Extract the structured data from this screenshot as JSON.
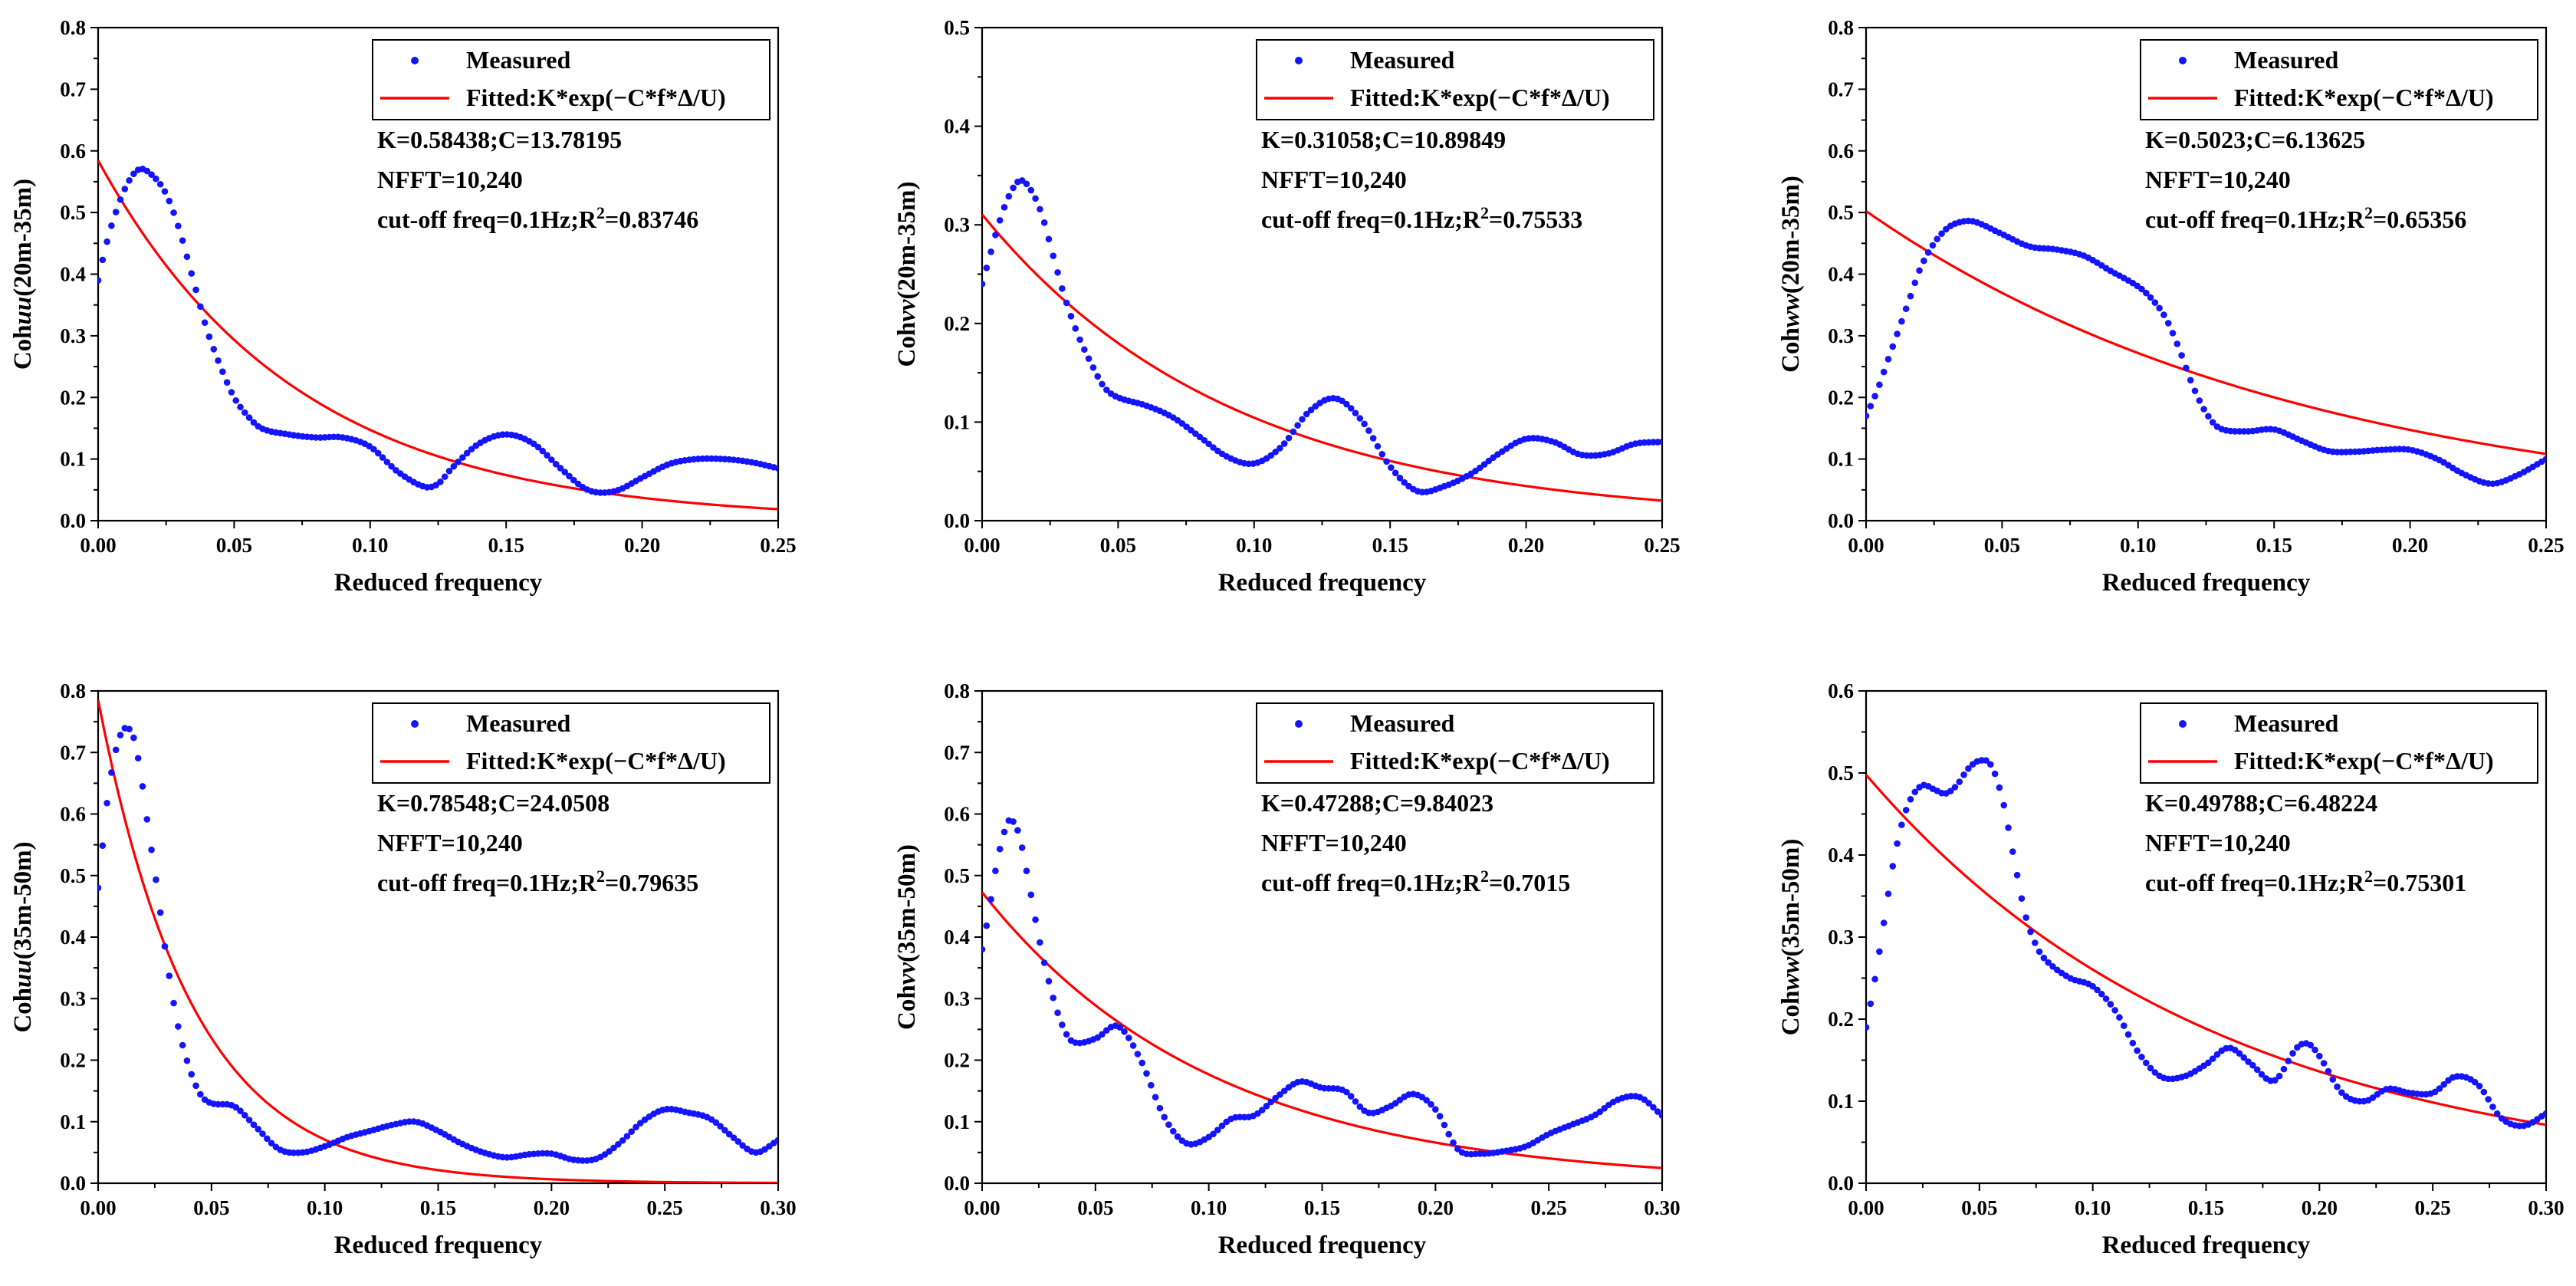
{
  "figure": {
    "colors": {
      "measured": "#1414ff",
      "fitted": "#ff0000",
      "axis": "#000000"
    }
  },
  "chart_data": [
    {
      "type": "scatter+line",
      "id": "p1",
      "xlabel": "Reduced frequency",
      "ylabel_pre": "Coh",
      "ylabel_var": "uu",
      "ylabel_post": "(20m-35m)",
      "xlim": [
        0,
        0.25
      ],
      "ylim": [
        0,
        0.8
      ],
      "xticks": [
        "0.00",
        "0.05",
        "0.10",
        "0.15",
        "0.20",
        "0.25"
      ],
      "yticks": [
        "0.0",
        "0.1",
        "0.2",
        "0.3",
        "0.4",
        "0.5",
        "0.6",
        "0.7",
        "0.8"
      ],
      "legend": {
        "measured": "Measured",
        "fitted": "Fitted:K*exp(−C*f*Δ/U)"
      },
      "annotation": {
        "line1": "K=0.58438;C=13.78195",
        "line2": "NFFT=10,240",
        "line3_pre": "cut-off freq=0.1Hz;R",
        "line3_sup": "2",
        "line3_post": "=0.83746"
      },
      "fit": {
        "K": 0.58438,
        "C": 13.78195
      },
      "measured": [
        [
          0,
          0.39
        ],
        [
          0.002,
          0.43
        ],
        [
          0.005,
          0.48
        ],
        [
          0.01,
          0.54
        ],
        [
          0.015,
          0.57
        ],
        [
          0.02,
          0.56
        ],
        [
          0.025,
          0.53
        ],
        [
          0.03,
          0.47
        ],
        [
          0.035,
          0.39
        ],
        [
          0.04,
          0.31
        ],
        [
          0.045,
          0.25
        ],
        [
          0.05,
          0.2
        ],
        [
          0.055,
          0.17
        ],
        [
          0.06,
          0.15
        ],
        [
          0.07,
          0.14
        ],
        [
          0.08,
          0.135
        ],
        [
          0.09,
          0.135
        ],
        [
          0.1,
          0.12
        ],
        [
          0.11,
          0.08
        ],
        [
          0.12,
          0.055
        ],
        [
          0.125,
          0.06
        ],
        [
          0.13,
          0.085
        ],
        [
          0.14,
          0.125
        ],
        [
          0.15,
          0.14
        ],
        [
          0.16,
          0.125
        ],
        [
          0.17,
          0.085
        ],
        [
          0.18,
          0.05
        ],
        [
          0.19,
          0.048
        ],
        [
          0.2,
          0.07
        ],
        [
          0.21,
          0.092
        ],
        [
          0.22,
          0.1
        ],
        [
          0.23,
          0.1
        ],
        [
          0.24,
          0.095
        ],
        [
          0.25,
          0.085
        ]
      ],
      "measured_style": "smooth"
    },
    {
      "type": "scatter+line",
      "id": "p2",
      "xlabel": "Reduced frequency",
      "ylabel_pre": "Coh",
      "ylabel_var": "vv",
      "ylabel_post": "(20m-35m)",
      "xlim": [
        0,
        0.25
      ],
      "ylim": [
        0,
        0.5
      ],
      "xticks": [
        "0.00",
        "0.05",
        "0.10",
        "0.15",
        "0.20",
        "0.25"
      ],
      "yticks": [
        "0.0",
        "0.1",
        "0.2",
        "0.3",
        "0.4",
        "0.5"
      ],
      "legend": {
        "measured": "Measured",
        "fitted": "Fitted:K*exp(−C*f*Δ/U)"
      },
      "annotation": {
        "line1": "K=0.31058;C=10.89849",
        "line2": "NFFT=10,240",
        "line3_pre": "cut-off freq=0.1Hz;R",
        "line3_sup": "2",
        "line3_post": "=0.75533"
      },
      "fit": {
        "K": 0.31058,
        "C": 10.89849
      },
      "measured": [
        [
          0,
          0.24
        ],
        [
          0.003,
          0.27
        ],
        [
          0.006,
          0.3
        ],
        [
          0.01,
          0.33
        ],
        [
          0.014,
          0.345
        ],
        [
          0.018,
          0.335
        ],
        [
          0.022,
          0.31
        ],
        [
          0.026,
          0.27
        ],
        [
          0.03,
          0.23
        ],
        [
          0.035,
          0.19
        ],
        [
          0.04,
          0.16
        ],
        [
          0.045,
          0.135
        ],
        [
          0.05,
          0.125
        ],
        [
          0.06,
          0.117
        ],
        [
          0.07,
          0.105
        ],
        [
          0.08,
          0.085
        ],
        [
          0.09,
          0.065
        ],
        [
          0.1,
          0.058
        ],
        [
          0.11,
          0.075
        ],
        [
          0.12,
          0.11
        ],
        [
          0.13,
          0.124
        ],
        [
          0.14,
          0.1
        ],
        [
          0.15,
          0.055
        ],
        [
          0.16,
          0.03
        ],
        [
          0.17,
          0.035
        ],
        [
          0.18,
          0.048
        ],
        [
          0.19,
          0.068
        ],
        [
          0.2,
          0.083
        ],
        [
          0.21,
          0.08
        ],
        [
          0.22,
          0.067
        ],
        [
          0.23,
          0.068
        ],
        [
          0.24,
          0.078
        ],
        [
          0.25,
          0.08
        ]
      ],
      "measured_style": "smooth"
    },
    {
      "type": "scatter+line",
      "id": "p3",
      "xlabel": "Reduced frequency",
      "ylabel_pre": "Coh",
      "ylabel_var": "ww",
      "ylabel_post": "(20m-35m)",
      "xlim": [
        0,
        0.25
      ],
      "ylim": [
        0,
        0.8
      ],
      "xticks": [
        "0.00",
        "0.05",
        "0.10",
        "0.15",
        "0.20",
        "0.25"
      ],
      "yticks": [
        "0.0",
        "0.1",
        "0.2",
        "0.3",
        "0.4",
        "0.5",
        "0.6",
        "0.7",
        "0.8"
      ],
      "legend": {
        "measured": "Measured",
        "fitted": "Fitted:K*exp(−C*f*Δ/U)"
      },
      "annotation": {
        "line1": "K=0.5023;C=6.13625",
        "line2": "NFFT=10,240",
        "line3_pre": "cut-off freq=0.1Hz;R",
        "line3_sup": "2",
        "line3_post": "=0.65356"
      },
      "fit": {
        "K": 0.5023,
        "C": 6.13625
      },
      "measured": [
        [
          0,
          0.17
        ],
        [
          0.004,
          0.21
        ],
        [
          0.008,
          0.26
        ],
        [
          0.012,
          0.31
        ],
        [
          0.016,
          0.36
        ],
        [
          0.02,
          0.41
        ],
        [
          0.025,
          0.45
        ],
        [
          0.03,
          0.475
        ],
        [
          0.035,
          0.485
        ],
        [
          0.04,
          0.485
        ],
        [
          0.05,
          0.465
        ],
        [
          0.06,
          0.445
        ],
        [
          0.07,
          0.44
        ],
        [
          0.08,
          0.43
        ],
        [
          0.09,
          0.405
        ],
        [
          0.1,
          0.38
        ],
        [
          0.105,
          0.36
        ],
        [
          0.11,
          0.33
        ],
        [
          0.115,
          0.28
        ],
        [
          0.12,
          0.22
        ],
        [
          0.125,
          0.175
        ],
        [
          0.13,
          0.15
        ],
        [
          0.14,
          0.145
        ],
        [
          0.15,
          0.148
        ],
        [
          0.16,
          0.13
        ],
        [
          0.17,
          0.113
        ],
        [
          0.18,
          0.112
        ],
        [
          0.19,
          0.115
        ],
        [
          0.2,
          0.115
        ],
        [
          0.21,
          0.1
        ],
        [
          0.22,
          0.075
        ],
        [
          0.23,
          0.06
        ],
        [
          0.24,
          0.075
        ],
        [
          0.25,
          0.1
        ]
      ],
      "measured_style": "smooth"
    },
    {
      "type": "scatter+line",
      "id": "p4",
      "xlabel": "Reduced frequency",
      "ylabel_pre": "Coh",
      "ylabel_var": "uu",
      "ylabel_post": "(35m-50m)",
      "xlim": [
        0,
        0.3
      ],
      "ylim": [
        0,
        0.8
      ],
      "xticks": [
        "0.00",
        "0.05",
        "0.10",
        "0.15",
        "0.20",
        "0.25",
        "0.30"
      ],
      "yticks": [
        "0.0",
        "0.1",
        "0.2",
        "0.3",
        "0.4",
        "0.5",
        "0.6",
        "0.7",
        "0.8"
      ],
      "legend": {
        "measured": "Measured",
        "fitted": "Fitted:K*exp(−C*f*Δ/U)"
      },
      "annotation": {
        "line1": "K=0.78548;C=24.0508",
        "line2": "NFFT=10,240",
        "line3_pre": "cut-off freq=0.1Hz;R",
        "line3_sup": "2",
        "line3_post": "=0.79635"
      },
      "fit": {
        "K": 0.78548,
        "C": 24.0508
      },
      "measured": [
        [
          0,
          0.48
        ],
        [
          0.002,
          0.55
        ],
        [
          0.004,
          0.62
        ],
        [
          0.007,
          0.69
        ],
        [
          0.01,
          0.73
        ],
        [
          0.013,
          0.74
        ],
        [
          0.016,
          0.72
        ],
        [
          0.019,
          0.66
        ],
        [
          0.022,
          0.58
        ],
        [
          0.026,
          0.48
        ],
        [
          0.03,
          0.37
        ],
        [
          0.035,
          0.26
        ],
        [
          0.04,
          0.19
        ],
        [
          0.045,
          0.145
        ],
        [
          0.05,
          0.13
        ],
        [
          0.06,
          0.125
        ],
        [
          0.07,
          0.09
        ],
        [
          0.08,
          0.055
        ],
        [
          0.09,
          0.05
        ],
        [
          0.1,
          0.06
        ],
        [
          0.11,
          0.075
        ],
        [
          0.12,
          0.085
        ],
        [
          0.13,
          0.095
        ],
        [
          0.14,
          0.1
        ],
        [
          0.15,
          0.085
        ],
        [
          0.16,
          0.065
        ],
        [
          0.17,
          0.05
        ],
        [
          0.18,
          0.042
        ],
        [
          0.19,
          0.047
        ],
        [
          0.2,
          0.048
        ],
        [
          0.21,
          0.038
        ],
        [
          0.22,
          0.04
        ],
        [
          0.23,
          0.065
        ],
        [
          0.24,
          0.1
        ],
        [
          0.25,
          0.12
        ],
        [
          0.26,
          0.115
        ],
        [
          0.27,
          0.105
        ],
        [
          0.28,
          0.075
        ],
        [
          0.29,
          0.05
        ],
        [
          0.3,
          0.07
        ]
      ],
      "measured_style": "smooth"
    },
    {
      "type": "scatter+line",
      "id": "p5",
      "xlabel": "Reduced frequency",
      "ylabel_pre": "Coh",
      "ylabel_var": "vv",
      "ylabel_post": "(35m-50m)",
      "xlim": [
        0,
        0.3
      ],
      "ylim": [
        0,
        0.8
      ],
      "xticks": [
        "0.00",
        "0.05",
        "0.10",
        "0.15",
        "0.20",
        "0.25",
        "0.30"
      ],
      "yticks": [
        "0.0",
        "0.1",
        "0.2",
        "0.3",
        "0.4",
        "0.5",
        "0.6",
        "0.7",
        "0.8"
      ],
      "legend": {
        "measured": "Measured",
        "fitted": "Fitted:K*exp(−C*f*Δ/U)"
      },
      "annotation": {
        "line1": "K=0.47288;C=9.84023",
        "line2": "NFFT=10,240",
        "line3_pre": "cut-off freq=0.1Hz;R",
        "line3_sup": "2",
        "line3_post": "=0.7015"
      },
      "fit": {
        "K": 0.47288,
        "C": 9.84023
      },
      "measured": [
        [
          0,
          0.38
        ],
        [
          0.003,
          0.44
        ],
        [
          0.006,
          0.51
        ],
        [
          0.009,
          0.56
        ],
        [
          0.012,
          0.59
        ],
        [
          0.016,
          0.57
        ],
        [
          0.02,
          0.5
        ],
        [
          0.025,
          0.4
        ],
        [
          0.03,
          0.32
        ],
        [
          0.035,
          0.26
        ],
        [
          0.04,
          0.23
        ],
        [
          0.05,
          0.235
        ],
        [
          0.06,
          0.255
        ],
        [
          0.07,
          0.2
        ],
        [
          0.08,
          0.11
        ],
        [
          0.09,
          0.065
        ],
        [
          0.1,
          0.075
        ],
        [
          0.11,
          0.105
        ],
        [
          0.12,
          0.11
        ],
        [
          0.13,
          0.14
        ],
        [
          0.14,
          0.165
        ],
        [
          0.15,
          0.155
        ],
        [
          0.16,
          0.15
        ],
        [
          0.17,
          0.115
        ],
        [
          0.18,
          0.125
        ],
        [
          0.19,
          0.145
        ],
        [
          0.2,
          0.12
        ],
        [
          0.21,
          0.055
        ],
        [
          0.22,
          0.048
        ],
        [
          0.23,
          0.052
        ],
        [
          0.24,
          0.06
        ],
        [
          0.25,
          0.08
        ],
        [
          0.26,
          0.095
        ],
        [
          0.27,
          0.11
        ],
        [
          0.28,
          0.135
        ],
        [
          0.29,
          0.14
        ],
        [
          0.3,
          0.11
        ]
      ],
      "measured_style": "smooth"
    },
    {
      "type": "scatter+line",
      "id": "p6",
      "xlabel": "Reduced frequency",
      "ylabel_pre": "Coh",
      "ylabel_var": "ww",
      "ylabel_post": "(35m-50m)",
      "xlim": [
        0,
        0.3
      ],
      "ylim": [
        0,
        0.6
      ],
      "xticks": [
        "0.00",
        "0.05",
        "0.10",
        "0.15",
        "0.20",
        "0.25",
        "0.30"
      ],
      "yticks": [
        "0.0",
        "0.1",
        "0.2",
        "0.3",
        "0.4",
        "0.5",
        "0.6"
      ],
      "legend": {
        "measured": "Measured",
        "fitted": "Fitted:K*exp(−C*f*Δ/U)"
      },
      "annotation": {
        "line1": "K=0.49788;C=6.48224",
        "line2": "NFFT=10,240",
        "line3_pre": "cut-off freq=0.1Hz;R",
        "line3_sup": "2",
        "line3_post": "=0.75301"
      },
      "fit": {
        "K": 0.49788,
        "C": 6.48224
      },
      "measured": [
        [
          0,
          0.19
        ],
        [
          0.004,
          0.25
        ],
        [
          0.008,
          0.32
        ],
        [
          0.012,
          0.39
        ],
        [
          0.016,
          0.44
        ],
        [
          0.02,
          0.47
        ],
        [
          0.025,
          0.485
        ],
        [
          0.03,
          0.48
        ],
        [
          0.035,
          0.475
        ],
        [
          0.04,
          0.485
        ],
        [
          0.045,
          0.505
        ],
        [
          0.05,
          0.515
        ],
        [
          0.055,
          0.51
        ],
        [
          0.06,
          0.47
        ],
        [
          0.065,
          0.4
        ],
        [
          0.07,
          0.33
        ],
        [
          0.075,
          0.29
        ],
        [
          0.08,
          0.27
        ],
        [
          0.09,
          0.25
        ],
        [
          0.1,
          0.24
        ],
        [
          0.11,
          0.21
        ],
        [
          0.12,
          0.16
        ],
        [
          0.13,
          0.13
        ],
        [
          0.14,
          0.13
        ],
        [
          0.15,
          0.145
        ],
        [
          0.16,
          0.165
        ],
        [
          0.17,
          0.145
        ],
        [
          0.18,
          0.125
        ],
        [
          0.19,
          0.165
        ],
        [
          0.195,
          0.17
        ],
        [
          0.2,
          0.155
        ],
        [
          0.21,
          0.11
        ],
        [
          0.22,
          0.1
        ],
        [
          0.23,
          0.115
        ],
        [
          0.24,
          0.11
        ],
        [
          0.25,
          0.11
        ],
        [
          0.26,
          0.13
        ],
        [
          0.27,
          0.12
        ],
        [
          0.28,
          0.08
        ],
        [
          0.29,
          0.07
        ],
        [
          0.3,
          0.085
        ]
      ],
      "measured_style": "smooth"
    }
  ]
}
